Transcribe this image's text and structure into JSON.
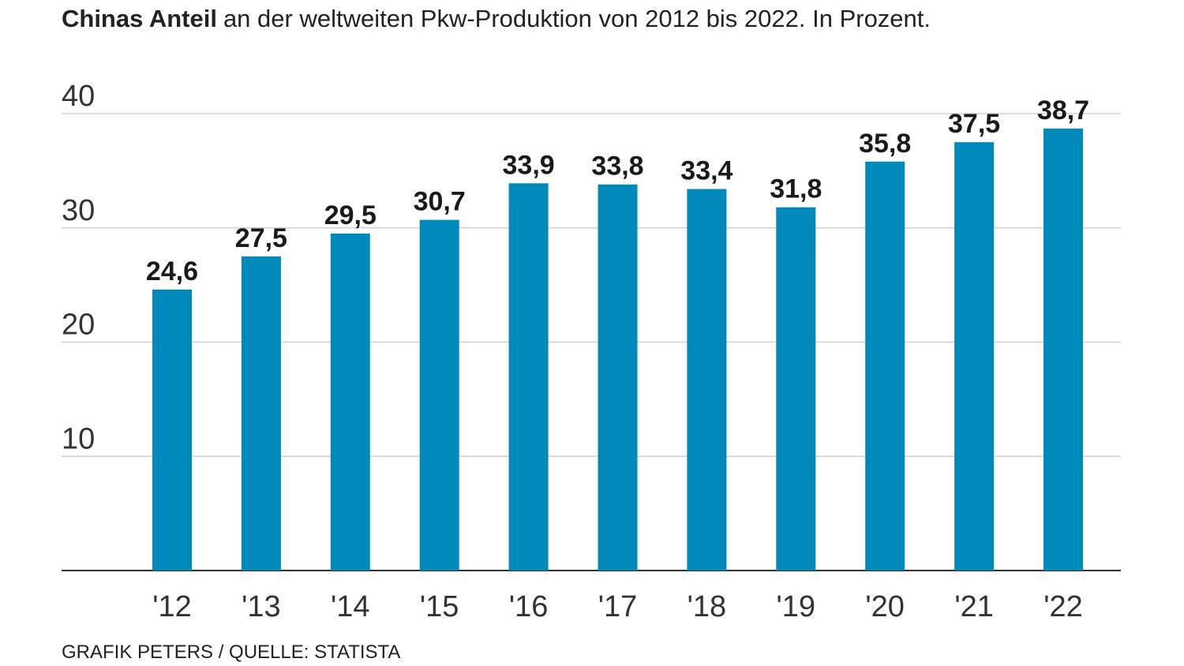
{
  "chart_data": {
    "type": "bar",
    "title_bold": "Chinas Anteil",
    "title": "an der weltweiten Pkw-Produktion von 2012 bis 2022. In Prozent.",
    "source": "GRAFIK PETERS / QUELLE: STATISTA",
    "categories": [
      "'12",
      "'13",
      "'14",
      "'15",
      "'16",
      "'17",
      "'18",
      "'19",
      "'20",
      "'21",
      "'22"
    ],
    "values": [
      24.6,
      27.5,
      29.5,
      30.7,
      33.9,
      33.8,
      33.4,
      31.8,
      35.8,
      37.5,
      38.7
    ],
    "value_labels": [
      "24,6",
      "27,5",
      "29,5",
      "30,7",
      "33,9",
      "33,8",
      "33,4",
      "31,8",
      "35,8",
      "37,5",
      "38,7"
    ],
    "color": "#0089bb",
    "ylim": [
      0,
      40
    ],
    "yticks": [
      10,
      20,
      30,
      40
    ],
    "grid": true
  }
}
